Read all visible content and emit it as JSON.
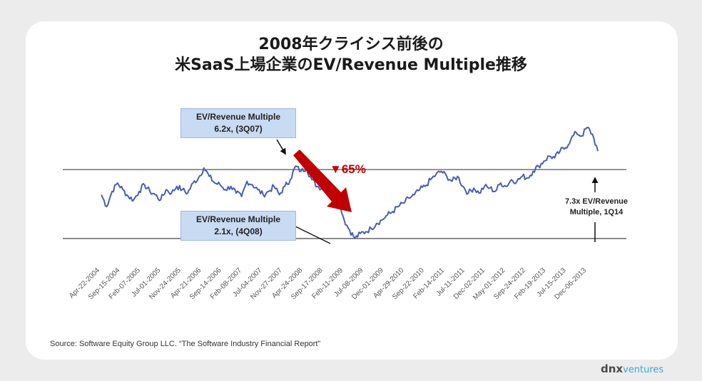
{
  "title": {
    "line1": "2008年クライシス前後の",
    "line2": "米SaaS上場企業のEV/Revenue Multiple推移"
  },
  "callouts": {
    "peak": {
      "line1": "EV/Revenue Multiple",
      "line2": "6.2x, (3Q07)"
    },
    "trough": {
      "line1": "EV/Revenue Multiple",
      "line2": "2.1x, (4Q08)"
    }
  },
  "decline_label": "▼65%",
  "current_note": {
    "line1": "7.3x EV/Revenue",
    "line2": "Multiple, 1Q14"
  },
  "source": "Source: Software Equity Group LLC. “The Software Industry Financial Report”",
  "logo": {
    "dnx": "dnx",
    "ventures": "ventures"
  },
  "colors": {
    "line": "#4a5cb8",
    "arrow": "#c00000",
    "callout_bg": "#c9daf3",
    "logo_accent": "#3aa8e0"
  },
  "chart_data": {
    "type": "line",
    "title": "2008年クライシス前後の 米SaaS上場企業のEV/Revenue Multiple推移",
    "xlabel": "",
    "ylabel": "",
    "x_tick_labels": [
      "Apr-22-2004",
      "Sep-15-2004",
      "Feb-07-2005",
      "Jul-01-2005",
      "Nov-24-2005",
      "Apr-21-2006",
      "Sep-14-2006",
      "Feb-08-2007",
      "Jul-04-2007",
      "Nov-27-2007",
      "Apr-24-2008",
      "Sep-17-2008",
      "Feb-11-2009",
      "Jul-08-2009",
      "Dec-01-2009",
      "Apr-29-2010",
      "Sep-22-2010",
      "Feb-14-2011",
      "Jul-11-2011",
      "Dec-02-2011",
      "May-01-2012",
      "Sep-24-2012",
      "Feb-19-2013",
      "Jul-15-2013",
      "Dec-06-2013"
    ],
    "ylim": [
      1.8,
      9.0
    ],
    "reference_lines": [
      2.1,
      6.2
    ],
    "series": [
      {
        "values": [
          4.7,
          4.0,
          4.9,
          5.4,
          5.0,
          4.6,
          4.4,
          4.9,
          5.3,
          4.9,
          4.7,
          4.4,
          5.0,
          4.8,
          5.2,
          5.0,
          4.8,
          5.4,
          5.7,
          6.3,
          5.8,
          5.4,
          5.3,
          5.0,
          5.2,
          4.8,
          4.6,
          5.5,
          5.3,
          5.0,
          4.7,
          4.9,
          5.2,
          4.7,
          5.2,
          5.6,
          6.4,
          6.1,
          6.3,
          5.6,
          5.2,
          5.1,
          5.4,
          4.9,
          4.4,
          3.2,
          2.6,
          2.1,
          2.4,
          2.5,
          2.7,
          3.0,
          3.2,
          3.5,
          3.7,
          4.0,
          4.2,
          4.5,
          4.7,
          5.0,
          5.2,
          5.6,
          5.9,
          6.1,
          5.8,
          5.5,
          5.8,
          5.2,
          4.8,
          5.1,
          4.8,
          5.2,
          5.1,
          4.9,
          5.4,
          5.2,
          5.6,
          5.5,
          5.8,
          5.7,
          6.1,
          6.4,
          6.7,
          7.0,
          6.9,
          7.3,
          7.5,
          8.0,
          8.4,
          8.2,
          8.7,
          8.3,
          7.3
        ]
      }
    ]
  }
}
